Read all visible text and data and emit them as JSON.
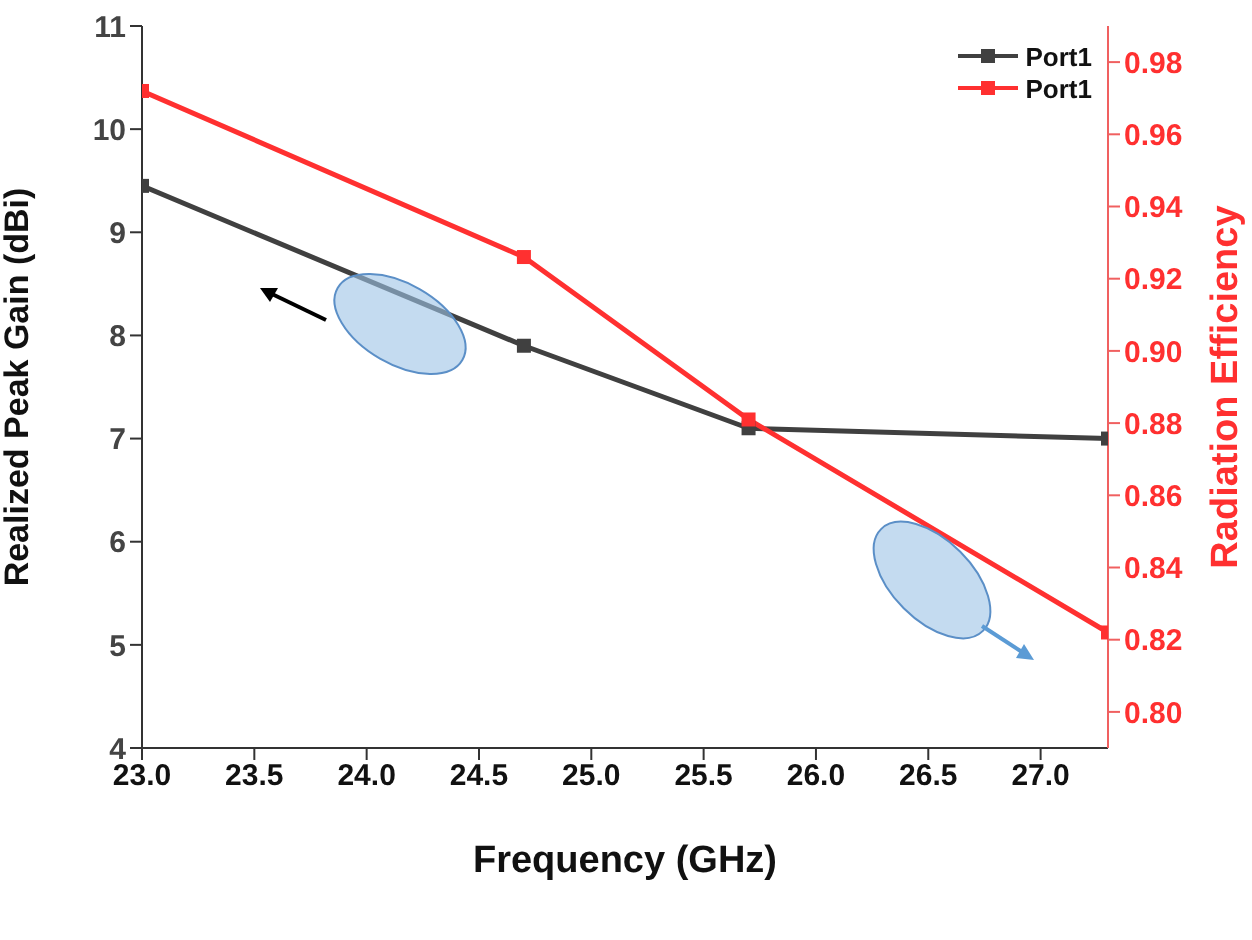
{
  "chart_data": {
    "type": "line",
    "xlabel": "Frequency (GHz)",
    "ylabel": "Realized Peak Gain (dBi)",
    "y2label": "Radiation Efficiency",
    "x": [
      23.0,
      24.7,
      25.7,
      27.3
    ],
    "series": [
      {
        "name": "Port1",
        "color": "#404040",
        "values": [
          9.45,
          7.9,
          7.1,
          7.0
        ]
      },
      {
        "name": "Port1",
        "color": "#ff3030",
        "values": [
          0.972,
          0.926,
          0.881,
          0.822
        ],
        "axis": "y2"
      }
    ],
    "xlim": [
      23.0,
      27.3
    ],
    "xticks": [
      {
        "value": 23.0,
        "label": "23.0"
      },
      {
        "value": 23.5,
        "label": "23.5"
      },
      {
        "value": 24.0,
        "label": "24.0"
      },
      {
        "value": 24.5,
        "label": "24.5"
      },
      {
        "value": 25.0,
        "label": "25.0"
      },
      {
        "value": 25.5,
        "label": "25.5"
      },
      {
        "value": 26.0,
        "label": "26.0"
      },
      {
        "value": 26.5,
        "label": "26.5"
      },
      {
        "value": 27.0,
        "label": "27.0"
      }
    ],
    "ylim": [
      4,
      11
    ],
    "yticks": [
      4,
      5,
      6,
      7,
      8,
      9,
      10,
      11
    ],
    "y2lim": [
      0.79,
      0.99
    ],
    "y2ticks": [
      {
        "value": 0.8,
        "label": "0.80"
      },
      {
        "value": 0.82,
        "label": "0.82"
      },
      {
        "value": 0.84,
        "label": "0.84"
      },
      {
        "value": 0.86,
        "label": "0.86"
      },
      {
        "value": 0.88,
        "label": "0.88"
      },
      {
        "value": 0.9,
        "label": "0.90"
      },
      {
        "value": 0.92,
        "label": "0.92"
      },
      {
        "value": 0.94,
        "label": "0.94"
      },
      {
        "value": 0.96,
        "label": "0.96"
      },
      {
        "value": 0.98,
        "label": "0.98"
      }
    ],
    "grid": false,
    "legend": "top right",
    "marker": "square",
    "line_style": "solid"
  }
}
